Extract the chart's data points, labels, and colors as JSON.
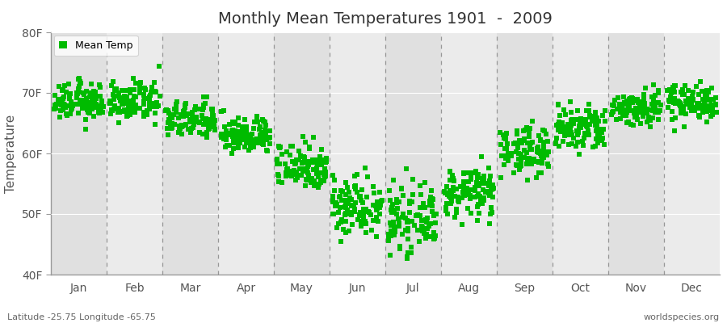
{
  "title": "Monthly Mean Temperatures 1901  -  2009",
  "ylabel": "Temperature",
  "months": [
    "Jan",
    "Feb",
    "Mar",
    "Apr",
    "May",
    "Jun",
    "Jul",
    "Aug",
    "Sep",
    "Oct",
    "Nov",
    "Dec"
  ],
  "month_centers": [
    0.5,
    1.5,
    2.5,
    3.5,
    4.5,
    5.5,
    6.5,
    7.5,
    8.5,
    9.5,
    10.5,
    11.5
  ],
  "dashed_lines": [
    1,
    2,
    3,
    4,
    5,
    6,
    7,
    8,
    9,
    10,
    11
  ],
  "mean_temps_F": [
    68.5,
    68.5,
    65.5,
    63.0,
    58.0,
    51.5,
    49.0,
    53.5,
    60.5,
    64.0,
    67.5,
    68.5
  ],
  "scatter_color": "#00bb00",
  "background_color": "#ffffff",
  "plot_bg_light": "#ebebeb",
  "plot_bg_dark": "#e0e0e0",
  "ylim": [
    40,
    80
  ],
  "yticks": [
    40,
    50,
    60,
    70,
    80
  ],
  "ytick_labels": [
    "40F",
    "50F",
    "60F",
    "70F",
    "80F"
  ],
  "n_years": 109,
  "scatter_spread": [
    1.5,
    1.5,
    1.5,
    1.5,
    2.0,
    2.5,
    2.5,
    2.0,
    2.0,
    2.0,
    1.5,
    1.5
  ],
  "footer_left": "Latitude -25.75 Longitude -65.75",
  "footer_right": "worldspecies.org",
  "legend_label": "Mean Temp",
  "marker_size": 5,
  "title_fontsize": 14,
  "axis_fontsize": 10,
  "footer_fontsize": 8
}
